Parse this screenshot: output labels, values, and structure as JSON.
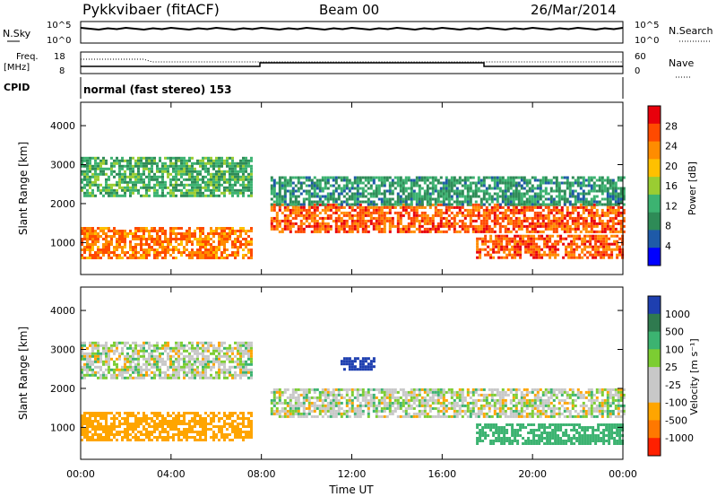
{
  "header": {
    "station": "Pykkvibaer (fitACF)",
    "beam": "Beam 00",
    "date": "26/Mar/2014"
  },
  "noise_panel": {
    "left_label": "N.Sky",
    "right_label": "N.Search",
    "left_ticks": [
      "10^5",
      "10^0"
    ],
    "right_ticks": [
      "10^5",
      "10^0"
    ]
  },
  "freq_panel": {
    "left_label_1": "Freq.",
    "left_label_2": "[MHz]",
    "right_label": "Nave",
    "left_ticks": [
      "18",
      "8"
    ],
    "right_ticks": [
      "60",
      "0"
    ]
  },
  "cpid": {
    "label": "CPID",
    "mode": "normal (fast stereo) 153"
  },
  "power_colorbar": {
    "title": "Power [dB]",
    "ticks": [
      "28",
      "24",
      "20",
      "16",
      "12",
      "8",
      "4"
    ],
    "colors": [
      "#e8000b",
      "#ff4a00",
      "#ff8c00",
      "#ffc000",
      "#9acd32",
      "#3cb371",
      "#2e8b57",
      "#1e5aa8",
      "#0000ff"
    ]
  },
  "velocity_colorbar": {
    "title": "Velocity [m s⁻¹]",
    "ticks": [
      "1000",
      "500",
      "100",
      "25",
      "-25",
      "-100",
      "-500",
      "-1000"
    ],
    "colors": [
      "#1e3fb0",
      "#2f7a4f",
      "#3cb371",
      "#7ccd32",
      "#c8c8c8",
      "#c8c8c8",
      "#ffa500",
      "#ff7800",
      "#ff2000"
    ]
  },
  "axes": {
    "ylabel": "Slant Range [km]",
    "yticks": [
      "4000",
      "3000",
      "2000",
      "1000"
    ],
    "xlabel": "Time UT",
    "xticks": [
      "00:00",
      "04:00",
      "08:00",
      "12:00",
      "16:00",
      "20:00",
      "00:00"
    ]
  },
  "chart_data": {
    "type": "heatmap",
    "x": [
      "00:00",
      "04:00",
      "08:00",
      "12:00",
      "16:00",
      "20:00",
      "00:00"
    ],
    "ylabel": "Slant Range [km]",
    "xlabel": "Time UT",
    "ylim": [
      180,
      4600
    ],
    "panels": [
      {
        "name": "Power",
        "colorbar_ticks": [
          28,
          24,
          20,
          16,
          12,
          8,
          4
        ],
        "bands": [
          {
            "t0": 0.0,
            "t1": 7.6,
            "r_lo": 600,
            "r_hi": 1400,
            "level": 24
          },
          {
            "t0": 0.0,
            "t1": 7.6,
            "r_lo": 2200,
            "r_hi": 3200,
            "level": 12
          },
          {
            "t0": 8.4,
            "t1": 24.0,
            "r_lo": 1300,
            "r_hi": 2000,
            "level": 26
          },
          {
            "t0": 17.5,
            "t1": 24.0,
            "r_lo": 600,
            "r_hi": 1200,
            "level": 26
          },
          {
            "t0": 8.4,
            "t1": 24.0,
            "r_lo": 2000,
            "r_hi": 2700,
            "level": 10
          }
        ]
      },
      {
        "name": "Velocity",
        "colorbar_ticks": [
          1000,
          500,
          100,
          25,
          -25,
          -100,
          -500,
          -1000
        ],
        "bands": [
          {
            "t0": 0.0,
            "t1": 7.6,
            "r_lo": 2300,
            "r_hi": 3200,
            "level": 0
          },
          {
            "t0": 0.0,
            "t1": 7.6,
            "r_lo": 700,
            "r_hi": 1400,
            "level": -200
          },
          {
            "t0": 8.4,
            "t1": 24.0,
            "r_lo": 1300,
            "r_hi": 2000,
            "level": 0
          },
          {
            "t0": 17.5,
            "t1": 24.0,
            "r_lo": 600,
            "r_hi": 1100,
            "level": 200
          },
          {
            "t0": 11.5,
            "t1": 13.0,
            "r_lo": 2500,
            "r_hi": 2800,
            "level": 800
          }
        ]
      }
    ]
  }
}
